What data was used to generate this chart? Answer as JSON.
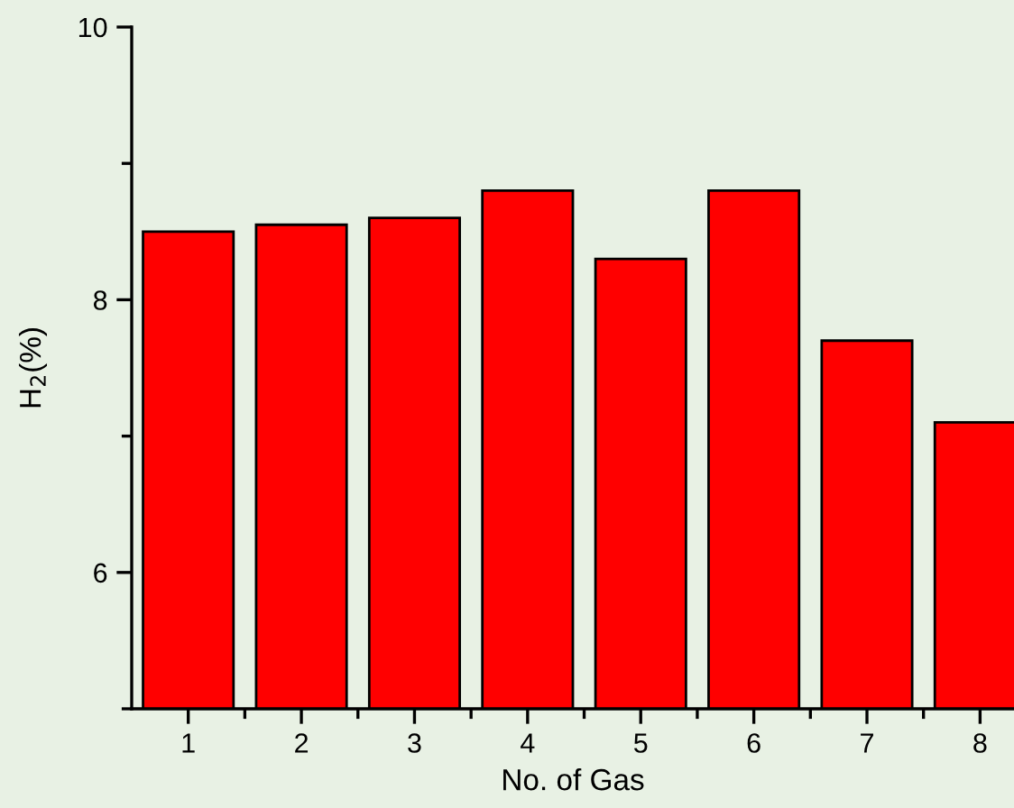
{
  "chart_data": {
    "type": "bar",
    "xlabel": "No. of Gas",
    "ylabel": "H$_{2}$(%)",
    "x": [
      1,
      2,
      3,
      4,
      5,
      6,
      7,
      8
    ],
    "values": [
      8.5,
      8.55,
      8.6,
      8.8,
      8.3,
      8.8,
      7.7,
      7.1
    ],
    "color": "#ff0000",
    "xlim": [
      0.5,
      8.3
    ],
    "xticks": [
      1,
      {
        "value": 1.5,
        "label": null
      },
      2,
      {
        "value": 2.5,
        "label": null
      },
      3,
      {
        "value": 3.5,
        "label": null
      },
      4,
      {
        "value": 4.5,
        "label": null
      },
      5,
      {
        "value": 5.5,
        "label": null
      },
      6,
      {
        "value": 6.5,
        "label": null
      },
      7,
      {
        "value": 7.5,
        "label": null
      },
      8
    ],
    "ylim": [
      5,
      10
    ],
    "yticks": [
      {
        "value": 5,
        "label": null
      },
      6,
      {
        "value": 7,
        "label": null
      },
      8,
      {
        "value": 9,
        "label": null
      },
      10
    ],
    "grid": false,
    "legend": false
  }
}
